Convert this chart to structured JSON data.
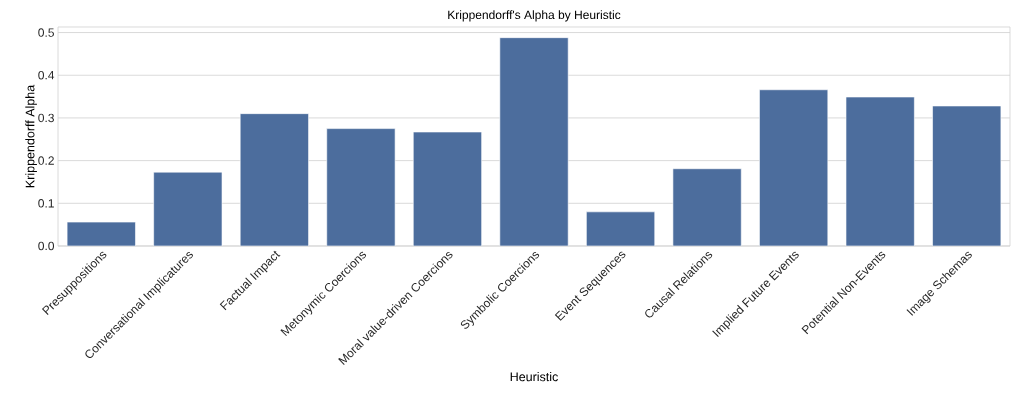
{
  "chart_data": {
    "type": "bar",
    "title": "Krippendorff's Alpha by Heuristic",
    "xlabel": "Heuristic",
    "ylabel": "Krippendorff Alpha",
    "categories": [
      "Presuppositions",
      "Conversational Implicatures",
      "Factual Impact",
      "Metonymic Coercions",
      "Moral value-driven Coercions",
      "Symbolic Coercions",
      "Event Sequences",
      "Causal Relations",
      "Implied Future Events",
      "Potential Non-Events",
      "Image Schemas"
    ],
    "values": [
      0.056,
      0.173,
      0.31,
      0.275,
      0.267,
      0.488,
      0.08,
      0.181,
      0.366,
      0.349,
      0.328
    ],
    "color": "#4c6d9d",
    "ylim": [
      0,
      0.513
    ],
    "yticks": [
      {
        "value": 0,
        "label": "0.0"
      },
      0.1,
      0.2,
      0.3,
      0.4,
      0.5
    ],
    "grid": "y"
  }
}
